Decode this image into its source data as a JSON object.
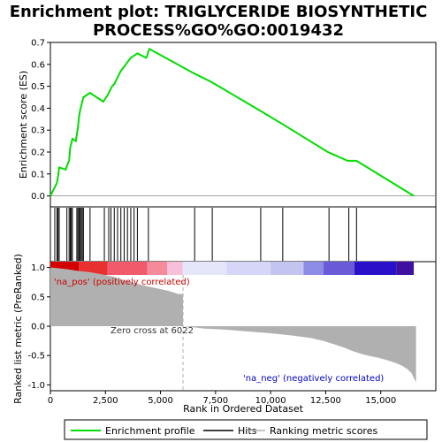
{
  "chart_data": {
    "type": "line",
    "title_line1": "Enrichment plot: TRIGLYCERIDE BIOSYNTHETIC",
    "title_line2": "PROCESS%GO%GO:0019432",
    "ylabel_top": "Enrichment score (ES)",
    "ylabel_bottom": "Ranked list metric (PreRanked)",
    "xlabel": "Rank in Ordered Dataset",
    "x_range": [
      0,
      17500
    ],
    "es_ylim": [
      -0.05,
      0.7
    ],
    "es_yticks": [
      "0.0",
      "0.1",
      "0.2",
      "0.3",
      "0.4",
      "0.5",
      "0.6",
      "0.7"
    ],
    "metric_ylim": [
      -1.1,
      1.1
    ],
    "metric_yticks": [
      "-1.0",
      "-0.5",
      "0.0",
      "0.5",
      "1.0"
    ],
    "xticks": [
      "0",
      "2,500",
      "5,000",
      "7,500",
      "10,000",
      "12,500",
      "15,000"
    ],
    "xtick_values": [
      0,
      2500,
      5000,
      7500,
      10000,
      12500,
      15000
    ],
    "enrichment_profile": {
      "x": [
        0,
        200,
        300,
        350,
        400,
        700,
        800,
        850,
        900,
        1000,
        1150,
        1200,
        1250,
        1300,
        1350,
        1400,
        1450,
        1500,
        1800,
        2400,
        2600,
        2700,
        2800,
        2900,
        3000,
        3100,
        3200,
        3350,
        3500,
        3650,
        3800,
        3950,
        4350,
        4400,
        4450,
        4500,
        6500,
        7300,
        9500,
        10500,
        12600,
        13500,
        13900,
        16500
      ],
      "y": [
        0.0,
        0.04,
        0.06,
        0.09,
        0.13,
        0.12,
        0.15,
        0.16,
        0.22,
        0.26,
        0.25,
        0.28,
        0.31,
        0.36,
        0.39,
        0.41,
        0.43,
        0.45,
        0.47,
        0.43,
        0.46,
        0.48,
        0.5,
        0.51,
        0.53,
        0.55,
        0.57,
        0.59,
        0.61,
        0.63,
        0.64,
        0.65,
        0.63,
        0.64,
        0.66,
        0.67,
        0.56,
        0.52,
        0.39,
        0.33,
        0.2,
        0.16,
        0.16,
        0.0
      ]
    },
    "hits": [
      200,
      300,
      350,
      400,
      750,
      850,
      900,
      950,
      1000,
      1200,
      1250,
      1300,
      1350,
      1400,
      1450,
      1500,
      1800,
      2450,
      2650,
      2750,
      2900,
      3050,
      3200,
      3350,
      3500,
      3650,
      3800,
      3950,
      4450,
      6550,
      7350,
      9550,
      10550,
      12650,
      13550,
      13900
    ],
    "metric_profile": {
      "x": [
        0,
        300,
        800,
        1300,
        1800,
        2400,
        2900,
        3400,
        3900,
        4400,
        4900,
        5400,
        5800,
        6022,
        6500,
        7000,
        8000,
        9000,
        10000,
        11000,
        11800,
        12400,
        12900,
        13300,
        13700,
        14100,
        14500,
        14900,
        15300,
        15700,
        16000,
        16200,
        16400,
        16600
      ],
      "y": [
        1.0,
        0.99,
        0.97,
        0.94,
        0.92,
        0.88,
        0.84,
        0.78,
        0.73,
        0.68,
        0.64,
        0.6,
        0.55,
        0.0,
        -0.02,
        -0.04,
        -0.06,
        -0.09,
        -0.12,
        -0.16,
        -0.2,
        -0.25,
        -0.31,
        -0.36,
        -0.42,
        -0.47,
        -0.51,
        -0.54,
        -0.58,
        -0.63,
        -0.68,
        -0.73,
        -0.8,
        -0.96
      ]
    },
    "zero_cross": 6022,
    "zero_cross_label": "Zero cross at 6022",
    "pos_label": "'na_pos' (positively correlated)",
    "neg_label": "'na_neg' (negatively correlated)",
    "heat_segments": [
      {
        "from": 0,
        "to": 1300,
        "color": "#d40000"
      },
      {
        "from": 1300,
        "to": 2600,
        "color": "#e83030"
      },
      {
        "from": 2600,
        "to": 4400,
        "color": "#f05a6a"
      },
      {
        "from": 4400,
        "to": 5300,
        "color": "#f58a9a"
      },
      {
        "from": 5300,
        "to": 6000,
        "color": "#f7c0d8"
      },
      {
        "from": 6000,
        "to": 8000,
        "color": "#e6e6fa"
      },
      {
        "from": 8000,
        "to": 10000,
        "color": "#d6d6f8"
      },
      {
        "from": 10000,
        "to": 11500,
        "color": "#c4c4f0"
      },
      {
        "from": 11500,
        "to": 12400,
        "color": "#8c8ce6"
      },
      {
        "from": 12400,
        "to": 13800,
        "color": "#6a5ad8"
      },
      {
        "from": 13800,
        "to": 15700,
        "color": "#2a10c8"
      },
      {
        "from": 15700,
        "to": 16500,
        "color": "#4010a0"
      }
    ],
    "legend": [
      "Enrichment profile",
      "Hits",
      "Ranking metric scores"
    ],
    "colors": {
      "profile": "#00dd00",
      "hits": "#000000",
      "metric": "#b0b0b0",
      "pos_label": "#cc0000",
      "neg_label": "#0000cc",
      "zero_line": "#b0b0b0"
    }
  }
}
